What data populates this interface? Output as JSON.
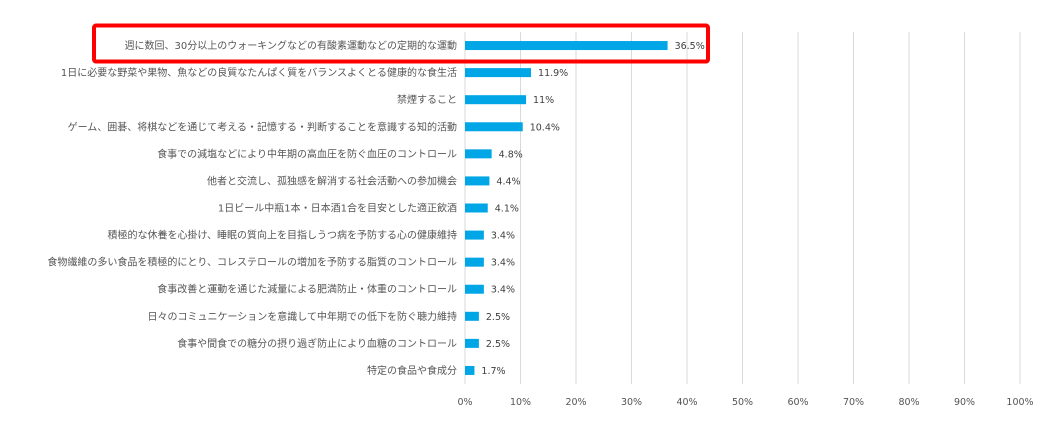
{
  "chart_data": {
    "type": "bar",
    "orientation": "horizontal",
    "categories": [
      "週に数回、30分以上のウォーキングなどの有酸素運動などの定期的な運動",
      "1日に必要な野菜や果物、魚などの良質なたんぱく質をバランスよくとる健康的な食生活",
      "禁煙すること",
      "ゲーム、囲碁、将棋などを通じて考える・記憶する・判断することを意識する知的活動",
      "食事での減塩などにより中年期の高血圧を防ぐ血圧のコントロール",
      "他者と交流し、孤独感を解消する社会活動への参加機会",
      "1日ビール中瓶1本・日本酒1合を目安とした適正飲酒",
      "積極的な休養を心掛け、睡眠の質向上を目指しうつ病を予防する心の健康維持",
      "食物繊維の多い食品を積極的にとり、コレステロールの増加を予防する脂質のコントロール",
      "食事改善と運動を通じた減量による肥満防止・体重のコントロール",
      "日々のコミュニケーションを意識して中年期での低下を防ぐ聴力維持",
      "食事や間食での糖分の摂り過ぎ防止により血糖のコントロール",
      "特定の食品や食成分"
    ],
    "values": [
      36.5,
      11.9,
      11,
      10.4,
      4.8,
      4.4,
      4.1,
      3.4,
      3.4,
      3.4,
      2.5,
      2.5,
      1.7
    ],
    "value_labels": [
      "36.5%",
      "11.9%",
      "11%",
      "10.4%",
      "4.8%",
      "4.4%",
      "4.1%",
      "3.4%",
      "3.4%",
      "3.4%",
      "2.5%",
      "2.5%",
      "1.7%"
    ],
    "x_ticks": [
      "0%",
      "10%",
      "20%",
      "30%",
      "40%",
      "50%",
      "60%",
      "70%",
      "80%",
      "90%",
      "100%"
    ],
    "xlim": [
      0,
      100
    ],
    "grid": true,
    "highlighted_index": 0,
    "colors": {
      "bar": "#00A6E6",
      "highlight": "#FF0000",
      "grid": "#d9d9d9"
    }
  }
}
